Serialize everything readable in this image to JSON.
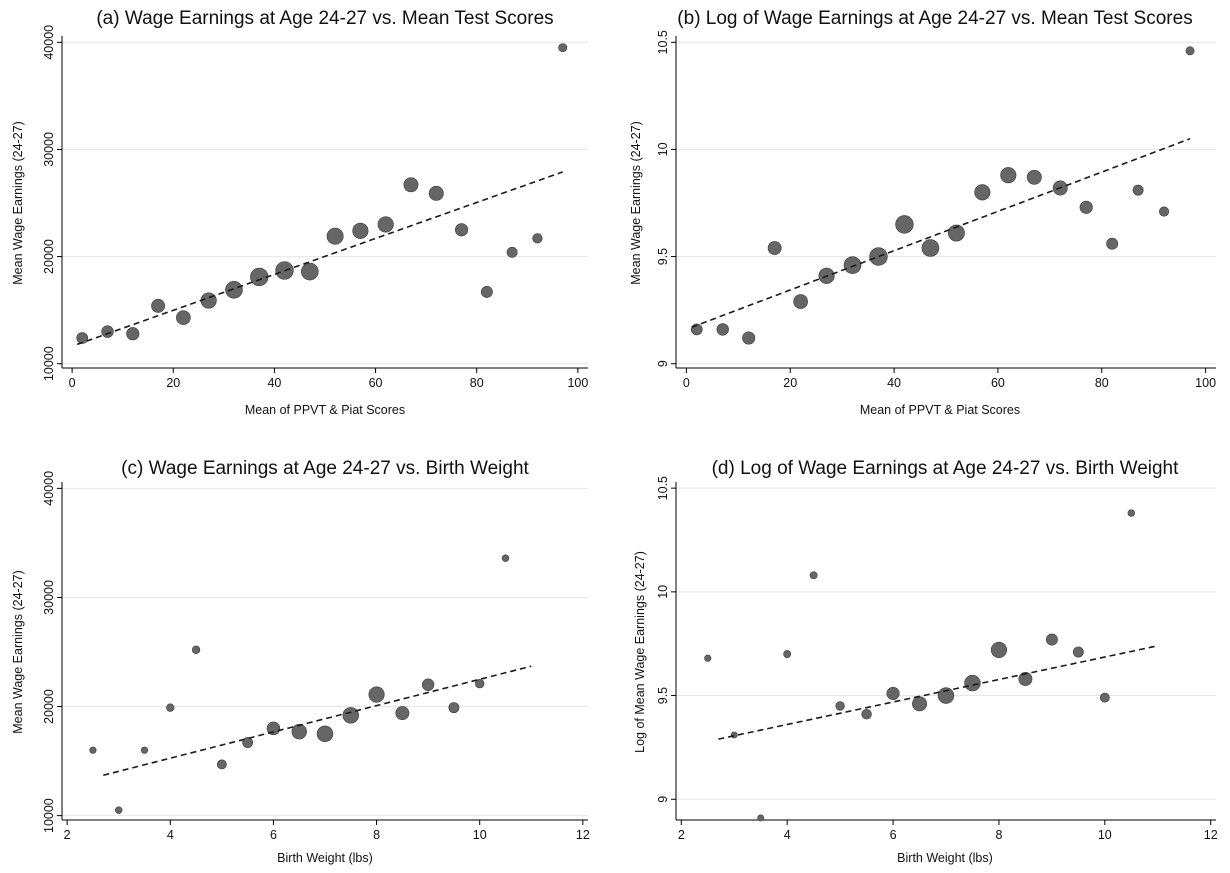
{
  "chart_data": [
    {
      "type": "scatter",
      "title": "(a) Wage Earnings at Age 24-27 vs. Mean Test Scores",
      "xlabel": "Mean of PPVT & Piat Scores",
      "ylabel": "Mean Wage Earnings (24-27)",
      "xlim": [
        -2,
        102
      ],
      "ylim": [
        9600,
        40400
      ],
      "xticks": [
        0,
        20,
        40,
        60,
        80,
        100
      ],
      "yticks": [
        10000,
        20000,
        30000,
        40000
      ],
      "grid": true,
      "series": [
        {
          "points": [
            {
              "x": 2,
              "y": 12400,
              "size": 0.4
            },
            {
              "x": 7,
              "y": 13000,
              "size": 0.45
            },
            {
              "x": 12,
              "y": 12800,
              "size": 0.5
            },
            {
              "x": 17,
              "y": 15400,
              "size": 0.55
            },
            {
              "x": 22,
              "y": 14300,
              "size": 0.6
            },
            {
              "x": 27,
              "y": 15900,
              "size": 0.7
            },
            {
              "x": 32,
              "y": 16900,
              "size": 0.8
            },
            {
              "x": 37,
              "y": 18100,
              "size": 0.85
            },
            {
              "x": 42,
              "y": 18700,
              "size": 0.85
            },
            {
              "x": 47,
              "y": 18600,
              "size": 0.8
            },
            {
              "x": 52,
              "y": 21900,
              "size": 0.75
            },
            {
              "x": 57,
              "y": 22400,
              "size": 0.7
            },
            {
              "x": 62,
              "y": 23000,
              "size": 0.7
            },
            {
              "x": 67,
              "y": 26700,
              "size": 0.62
            },
            {
              "x": 72,
              "y": 25900,
              "size": 0.62
            },
            {
              "x": 77,
              "y": 22500,
              "size": 0.5
            },
            {
              "x": 82,
              "y": 16700,
              "size": 0.42
            },
            {
              "x": 87,
              "y": 20400,
              "size": 0.35
            },
            {
              "x": 92,
              "y": 21700,
              "size": 0.3
            },
            {
              "x": 97,
              "y": 39500,
              "size": 0.22
            }
          ]
        }
      ],
      "fit_line": {
        "x": [
          1,
          97
        ],
        "y": [
          11800,
          27900
        ]
      }
    },
    {
      "type": "scatter",
      "title": "(b) Log of Wage Earnings at Age 24-27 vs. Mean Test Scores",
      "xlabel": "Mean of PPVT & Piat Scores",
      "ylabel": "Mean Wage Earnings (24-27)",
      "xlim": [
        -2,
        102
      ],
      "ylim": [
        8.98,
        10.52
      ],
      "xticks": [
        0,
        20,
        40,
        60,
        80,
        100
      ],
      "yticks": [
        9,
        9.5,
        10,
        10.5
      ],
      "grid": true,
      "series": [
        {
          "points": [
            {
              "x": 2,
              "y": 9.16,
              "size": 0.4
            },
            {
              "x": 7,
              "y": 9.16,
              "size": 0.45
            },
            {
              "x": 12,
              "y": 9.12,
              "size": 0.5
            },
            {
              "x": 17,
              "y": 9.54,
              "size": 0.55
            },
            {
              "x": 22,
              "y": 9.29,
              "size": 0.6
            },
            {
              "x": 27,
              "y": 9.41,
              "size": 0.7
            },
            {
              "x": 32,
              "y": 9.46,
              "size": 0.8
            },
            {
              "x": 37,
              "y": 9.5,
              "size": 0.85
            },
            {
              "x": 42,
              "y": 9.65,
              "size": 0.85
            },
            {
              "x": 47,
              "y": 9.54,
              "size": 0.8
            },
            {
              "x": 52,
              "y": 9.61,
              "size": 0.75
            },
            {
              "x": 57,
              "y": 9.8,
              "size": 0.7
            },
            {
              "x": 62,
              "y": 9.88,
              "size": 0.7
            },
            {
              "x": 67,
              "y": 9.87,
              "size": 0.62
            },
            {
              "x": 72,
              "y": 9.82,
              "size": 0.62
            },
            {
              "x": 77,
              "y": 9.73,
              "size": 0.5
            },
            {
              "x": 82,
              "y": 9.56,
              "size": 0.42
            },
            {
              "x": 87,
              "y": 9.81,
              "size": 0.35
            },
            {
              "x": 92,
              "y": 9.71,
              "size": 0.3
            },
            {
              "x": 97,
              "y": 10.46,
              "size": 0.22
            }
          ]
        }
      ],
      "fit_line": {
        "x": [
          1,
          97
        ],
        "y": [
          9.17,
          10.05
        ]
      }
    },
    {
      "type": "scatter",
      "title": "(c) Wage Earnings at Age 24-27 vs. Birth Weight",
      "xlabel": "Birth Weight (lbs)",
      "ylabel": "Mean Wage Earnings (24-27)",
      "xlim": [
        1.9,
        12.1
      ],
      "ylim": [
        9600,
        40400
      ],
      "xticks": [
        2,
        4,
        6,
        8,
        10,
        12
      ],
      "yticks": [
        10000,
        20000,
        30000,
        40000
      ],
      "grid": true,
      "series": [
        {
          "points": [
            {
              "x": 2.5,
              "y": 16000,
              "size": 0.1
            },
            {
              "x": 3.0,
              "y": 10500,
              "size": 0.12
            },
            {
              "x": 3.5,
              "y": 16000,
              "size": 0.1
            },
            {
              "x": 4.0,
              "y": 19900,
              "size": 0.18
            },
            {
              "x": 4.5,
              "y": 25200,
              "size": 0.18
            },
            {
              "x": 5.0,
              "y": 14700,
              "size": 0.28
            },
            {
              "x": 5.5,
              "y": 16700,
              "size": 0.35
            },
            {
              "x": 6.0,
              "y": 18000,
              "size": 0.52
            },
            {
              "x": 6.5,
              "y": 17700,
              "size": 0.65
            },
            {
              "x": 7.0,
              "y": 17500,
              "size": 0.72
            },
            {
              "x": 7.5,
              "y": 19200,
              "size": 0.72
            },
            {
              "x": 8.0,
              "y": 21100,
              "size": 0.7
            },
            {
              "x": 8.5,
              "y": 19400,
              "size": 0.55
            },
            {
              "x": 9.0,
              "y": 22000,
              "size": 0.45
            },
            {
              "x": 9.5,
              "y": 19900,
              "size": 0.35
            },
            {
              "x": 10.0,
              "y": 22100,
              "size": 0.25
            },
            {
              "x": 10.5,
              "y": 33600,
              "size": 0.12
            }
          ]
        }
      ],
      "fit_line": {
        "x": [
          2.7,
          11.0
        ],
        "y": [
          13700,
          23700
        ]
      }
    },
    {
      "type": "scatter",
      "title": "(d) Log of Wage Earnings at Age 24-27 vs. Birth Weight",
      "xlabel": "Birth Weight (lbs)",
      "ylabel": "Log of Mean Wage Earnings (24-27)",
      "xlim": [
        1.9,
        12.1
      ],
      "ylim": [
        8.9,
        10.52
      ],
      "xticks": [
        2,
        4,
        6,
        8,
        10,
        12
      ],
      "yticks": [
        9,
        9.5,
        10,
        10.5
      ],
      "grid": true,
      "series": [
        {
          "points": [
            {
              "x": 2.5,
              "y": 9.68,
              "size": 0.1
            },
            {
              "x": 3.0,
              "y": 9.31,
              "size": 0.08
            },
            {
              "x": 3.5,
              "y": 8.91,
              "size": 0.08
            },
            {
              "x": 4.0,
              "y": 9.7,
              "size": 0.15
            },
            {
              "x": 4.5,
              "y": 10.08,
              "size": 0.15
            },
            {
              "x": 5.0,
              "y": 9.45,
              "size": 0.25
            },
            {
              "x": 5.5,
              "y": 9.41,
              "size": 0.32
            },
            {
              "x": 6.0,
              "y": 9.51,
              "size": 0.5
            },
            {
              "x": 6.5,
              "y": 9.46,
              "size": 0.62
            },
            {
              "x": 7.0,
              "y": 9.5,
              "size": 0.72
            },
            {
              "x": 7.5,
              "y": 9.56,
              "size": 0.72
            },
            {
              "x": 8.0,
              "y": 9.72,
              "size": 0.7
            },
            {
              "x": 8.5,
              "y": 9.58,
              "size": 0.55
            },
            {
              "x": 9.0,
              "y": 9.77,
              "size": 0.42
            },
            {
              "x": 9.5,
              "y": 9.71,
              "size": 0.35
            },
            {
              "x": 10.0,
              "y": 9.49,
              "size": 0.28
            },
            {
              "x": 10.5,
              "y": 10.38,
              "size": 0.12
            }
          ]
        }
      ],
      "fit_line": {
        "x": [
          2.7,
          11.0
        ],
        "y": [
          9.29,
          9.74
        ]
      }
    }
  ]
}
